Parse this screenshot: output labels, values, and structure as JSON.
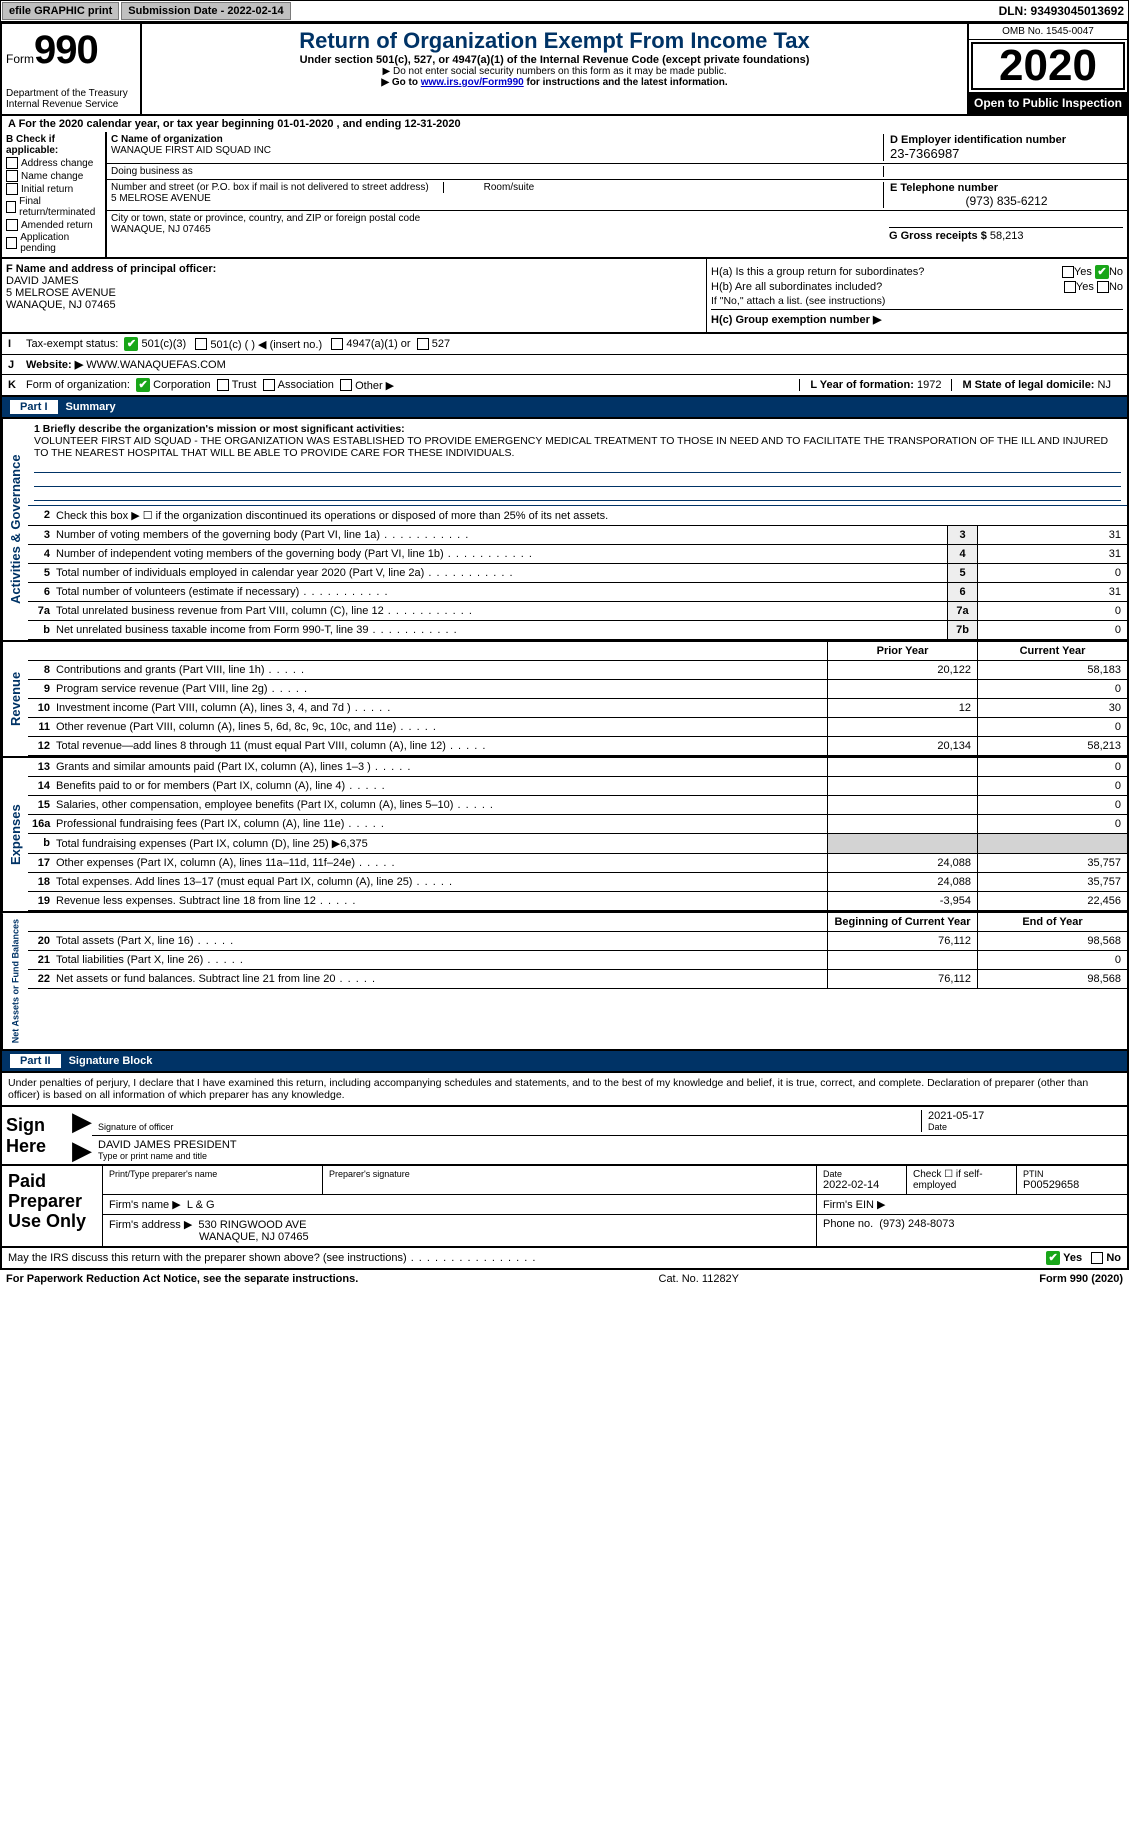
{
  "topbar": {
    "efile_label": "efile GRAPHIC print",
    "submission_btn": "Submission Date - 2022-02-14",
    "dln": "DLN: 93493045013692"
  },
  "header": {
    "form_label": "Form",
    "form_number": "990",
    "title": "Return of Organization Exempt From Income Tax",
    "sub1": "Under section 501(c), 527, or 4947(a)(1) of the Internal Revenue Code (except private foundations)",
    "sub2": "▶ Do not enter social security numbers on this form as it may be made public.",
    "sub3_prefix": "▶ Go to ",
    "sub3_link": "www.irs.gov/Form990",
    "sub3_suffix": " for instructions and the latest information.",
    "omb": "OMB No. 1545-0047",
    "year": "2020",
    "open_public": "Open to Public Inspection",
    "dept": "Department of the Treasury\nInternal Revenue Service"
  },
  "period": {
    "label": "A For the 2020 calendar year, or tax year beginning 01-01-2020   , and ending 12-31-2020"
  },
  "B": {
    "heading": "B Check if applicable:",
    "items": [
      "Address change",
      "Name change",
      "Initial return",
      "Final return/terminated",
      "Amended return",
      "Application pending"
    ]
  },
  "C": {
    "name_label": "C Name of organization",
    "name": "WANAQUE FIRST AID SQUAD INC",
    "dba_label": "Doing business as",
    "addr_label": "Number and street (or P.O. box if mail is not delivered to street address)",
    "room_label": "Room/suite",
    "addr": "5 MELROSE AVENUE",
    "city_label": "City or town, state or province, country, and ZIP or foreign postal code",
    "city": "WANAQUE, NJ  07465"
  },
  "D": {
    "label": "D Employer identification number",
    "value": "23-7366987"
  },
  "E": {
    "label": "E Telephone number",
    "value": "(973) 835-6212"
  },
  "G": {
    "label": "G Gross receipts $",
    "value": "58,213"
  },
  "F": {
    "label": "F  Name and address of principal officer:",
    "name": "DAVID JAMES",
    "addr1": "5 MELROSE AVENUE",
    "addr2": "WANAQUE, NJ  07465"
  },
  "H": {
    "a": "H(a)  Is this a group return for subordinates?",
    "b": "H(b)  Are all subordinates included?",
    "b_note": "If \"No,\" attach a list. (see instructions)",
    "c": "H(c)  Group exemption number ▶",
    "yes": "Yes",
    "no": "No"
  },
  "I": {
    "label": "Tax-exempt status:",
    "opts": [
      "501(c)(3)",
      "501(c) (  ) ◀ (insert no.)",
      "4947(a)(1) or",
      "527"
    ]
  },
  "J": {
    "label": "Website: ▶",
    "value": "WWW.WANAQUEFAS.COM"
  },
  "K": {
    "label": "Form of organization:",
    "opts": [
      "Corporation",
      "Trust",
      "Association",
      "Other ▶"
    ]
  },
  "L": {
    "label": "L Year of formation:",
    "value": "1972"
  },
  "M": {
    "label": "M State of legal domicile:",
    "value": "NJ"
  },
  "part1": {
    "title": "Part I",
    "sub": "Summary",
    "mission_label": "1  Briefly describe the organization's mission or most significant activities:",
    "mission": "VOLUNTEER FIRST AID SQUAD - THE ORGANIZATION WAS ESTABLISHED TO PROVIDE EMERGENCY MEDICAL TREATMENT TO THOSE IN NEED AND TO FACILITATE THE TRANSPORATION OF THE ILL AND INJURED TO THE NEAREST HOSPITAL THAT WILL BE ABLE TO PROVIDE CARE FOR THESE INDIVIDUALS.",
    "line2": "Check this box ▶ ☐  if the organization discontinued its operations or disposed of more than 25% of its net assets.",
    "rows_ag": [
      {
        "n": "3",
        "d": "Number of voting members of the governing body (Part VI, line 1a)",
        "box": "3",
        "v": "31"
      },
      {
        "n": "4",
        "d": "Number of independent voting members of the governing body (Part VI, line 1b)",
        "box": "4",
        "v": "31"
      },
      {
        "n": "5",
        "d": "Total number of individuals employed in calendar year 2020 (Part V, line 2a)",
        "box": "5",
        "v": "0"
      },
      {
        "n": "6",
        "d": "Total number of volunteers (estimate if necessary)",
        "box": "6",
        "v": "31"
      },
      {
        "n": "7a",
        "d": "Total unrelated business revenue from Part VIII, column (C), line 12",
        "box": "7a",
        "v": "0"
      },
      {
        "n": "b",
        "d": "Net unrelated business taxable income from Form 990-T, line 39",
        "box": "7b",
        "v": "0"
      }
    ],
    "hdr_prior": "Prior Year",
    "hdr_curr": "Current Year",
    "rows_rev": [
      {
        "n": "8",
        "d": "Contributions and grants (Part VIII, line 1h)",
        "p": "20,122",
        "c": "58,183"
      },
      {
        "n": "9",
        "d": "Program service revenue (Part VIII, line 2g)",
        "p": "",
        "c": "0"
      },
      {
        "n": "10",
        "d": "Investment income (Part VIII, column (A), lines 3, 4, and 7d )",
        "p": "12",
        "c": "30"
      },
      {
        "n": "11",
        "d": "Other revenue (Part VIII, column (A), lines 5, 6d, 8c, 9c, 10c, and 11e)",
        "p": "",
        "c": "0"
      },
      {
        "n": "12",
        "d": "Total revenue—add lines 8 through 11 (must equal Part VIII, column (A), line 12)",
        "p": "20,134",
        "c": "58,213"
      }
    ],
    "rows_exp": [
      {
        "n": "13",
        "d": "Grants and similar amounts paid (Part IX, column (A), lines 1–3 )",
        "p": "",
        "c": "0"
      },
      {
        "n": "14",
        "d": "Benefits paid to or for members (Part IX, column (A), line 4)",
        "p": "",
        "c": "0"
      },
      {
        "n": "15",
        "d": "Salaries, other compensation, employee benefits (Part IX, column (A), lines 5–10)",
        "p": "",
        "c": "0"
      },
      {
        "n": "16a",
        "d": "Professional fundraising fees (Part IX, column (A), line 11e)",
        "p": "",
        "c": "0"
      },
      {
        "n": "b",
        "d": "Total fundraising expenses (Part IX, column (D), line 25) ▶6,375",
        "p": null,
        "c": null
      },
      {
        "n": "17",
        "d": "Other expenses (Part IX, column (A), lines 11a–11d, 11f–24e)",
        "p": "24,088",
        "c": "35,757"
      },
      {
        "n": "18",
        "d": "Total expenses. Add lines 13–17 (must equal Part IX, column (A), line 25)",
        "p": "24,088",
        "c": "35,757"
      },
      {
        "n": "19",
        "d": "Revenue less expenses. Subtract line 18 from line 12",
        "p": "-3,954",
        "c": "22,456"
      }
    ],
    "hdr_boy": "Beginning of Current Year",
    "hdr_eoy": "End of Year",
    "rows_na": [
      {
        "n": "20",
        "d": "Total assets (Part X, line 16)",
        "p": "76,112",
        "c": "98,568"
      },
      {
        "n": "21",
        "d": "Total liabilities (Part X, line 26)",
        "p": "",
        "c": "0"
      },
      {
        "n": "22",
        "d": "Net assets or fund balances. Subtract line 21 from line 20",
        "p": "76,112",
        "c": "98,568"
      }
    ],
    "vtab_ag": "Activities & Governance",
    "vtab_rev": "Revenue",
    "vtab_exp": "Expenses",
    "vtab_na": "Net Assets or Fund Balances"
  },
  "part2": {
    "title": "Part II",
    "sub": "Signature Block"
  },
  "decl": "Under penalties of perjury, I declare that I have examined this return, including accompanying schedules and statements, and to the best of my knowledge and belief, it is true, correct, and complete. Declaration of preparer (other than officer) is based on all information of which preparer has any knowledge.",
  "sign": {
    "sign_here": "Sign Here",
    "sig_officer": "Signature of officer",
    "date_lbl": "Date",
    "date": "2021-05-17",
    "name_title": "DAVID JAMES PRESIDENT",
    "type_lbl": "Type or print name and title"
  },
  "paid": {
    "label": "Paid Preparer Use Only",
    "print_lbl": "Print/Type preparer's name",
    "sig_lbl": "Preparer's signature",
    "date_lbl": "Date",
    "date": "2022-02-14",
    "check_lbl": "Check ☐ if self-employed",
    "ptin_lbl": "PTIN",
    "ptin": "P00529658",
    "firm_name_lbl": "Firm's name   ▶",
    "firm_name": "L & G",
    "firm_ein_lbl": "Firm's EIN ▶",
    "firm_addr_lbl": "Firm's address ▶",
    "firm_addr": "530 RINGWOOD AVE",
    "firm_addr2": "WANAQUE, NJ  07465",
    "phone_lbl": "Phone no.",
    "phone": "(973) 248-8073"
  },
  "discuss": "May the IRS discuss this return with the preparer shown above? (see instructions)",
  "footer": {
    "pra": "For Paperwork Reduction Act Notice, see the separate instructions.",
    "cat": "Cat. No. 11282Y",
    "form": "Form 990 (2020)"
  }
}
